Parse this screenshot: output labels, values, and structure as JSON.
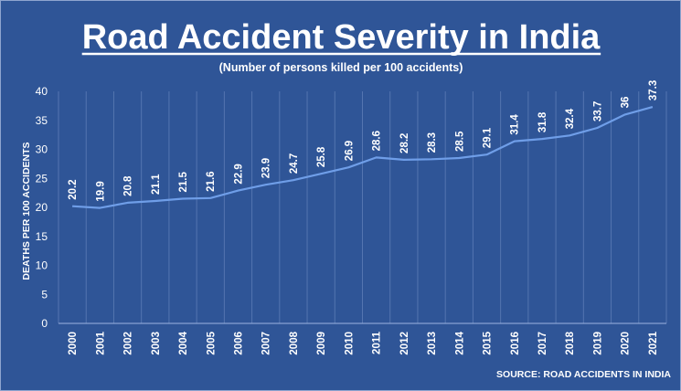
{
  "chart_data": {
    "type": "line",
    "title": "Road Accident Severity in India",
    "subtitle": "(Number of persons killed per 100 accidents)",
    "ylabel": "DEATHS PER 100 ACCIDENTS",
    "xlabel": "",
    "source": "SOURCE:  ROAD ACCIDENTS IN INDIA",
    "ylim": [
      0,
      40
    ],
    "yticks": [
      0,
      5,
      10,
      15,
      20,
      25,
      30,
      35,
      40
    ],
    "grid": "vertical",
    "line_color": "#6f9ee8",
    "series": [
      {
        "x": [
          "2000",
          "2001",
          "2002",
          "2003",
          "2004",
          "2005",
          "2006",
          "2007",
          "2008",
          "2009",
          "2010",
          "2011",
          "2012",
          "2013",
          "2014",
          "2015",
          "2016",
          "2017",
          "2018",
          "2019",
          "2020",
          "2021"
        ],
        "values": [
          20.2,
          19.9,
          20.8,
          21.1,
          21.5,
          21.6,
          22.9,
          23.9,
          24.7,
          25.8,
          26.9,
          28.6,
          28.2,
          28.3,
          28.5,
          29.1,
          31.4,
          31.8,
          32.4,
          33.7,
          36,
          37.3
        ]
      }
    ]
  }
}
